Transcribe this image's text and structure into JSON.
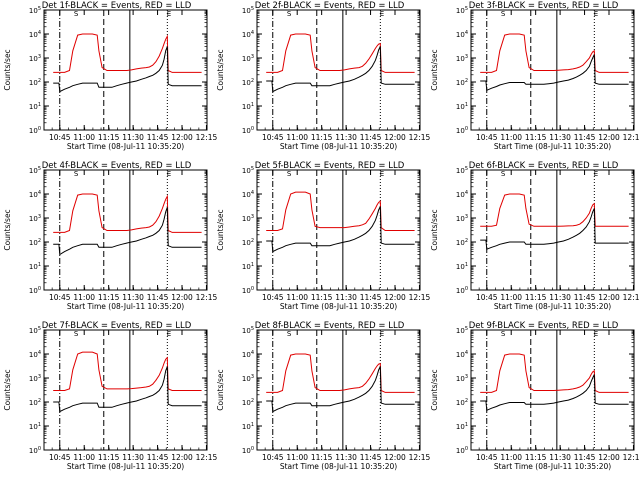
{
  "chart_data": {
    "type": "line",
    "layout": "3x3 grid of panels",
    "common": {
      "title_suffix": "-BLACK = Events, RED = LLD",
      "ylabel": "Counts/sec",
      "xlabel": "Start Time (08-Jul-11 10:35:20)",
      "x_ticks": [
        "10:45",
        "11:00",
        "11:15",
        "11:30",
        "11:45",
        "12:00",
        "12:15"
      ],
      "x_range_minutes_from_start": [
        0,
        100
      ],
      "y_scale": "log",
      "y_ticks": [
        "10^0",
        "10^1",
        "10^2",
        "10^3",
        "10^4",
        "10^5"
      ],
      "ylim": [
        1,
        100000
      ],
      "grid": false,
      "legend": "none",
      "series_names": [
        "Events",
        "LLD"
      ],
      "series_colors": [
        "#000000",
        "#e00000"
      ],
      "vertical_markers": [
        {
          "time": "10:45",
          "style": "dash-dot"
        },
        {
          "time": "11:12",
          "style": "dashed"
        },
        {
          "time": "11:28",
          "style": "solid"
        },
        {
          "time": "11:51",
          "style": "dotted"
        },
        {
          "time": "12:16",
          "style": "dotted"
        }
      ],
      "marker_labels": [
        {
          "time": "10:55",
          "label": "S"
        },
        {
          "time": "11:52",
          "label": "E"
        }
      ],
      "time_points": [
        "10:41",
        "10:44",
        "10:44.5",
        "10:45",
        "10:48",
        "10:51",
        "10:53",
        "10:56",
        "10:59",
        "11:02",
        "11:05",
        "11:08",
        "11:09",
        "11:11",
        "11:14",
        "11:17",
        "11:20",
        "11:23",
        "11:26",
        "11:29",
        "11:32",
        "11:35",
        "11:38",
        "11:40",
        "11:42",
        "11:44",
        "11:46",
        "11:48",
        "11:49",
        "11:50",
        "11:51",
        "11:51.5",
        "11:54",
        "11:57",
        "12:00",
        "12:03",
        "12:06",
        "12:09",
        "12:12"
      ]
    },
    "panels": [
      {
        "title": "Det 1f-BLACK = Events, RED = LLD",
        "events": [
          90,
          90,
          90,
          40,
          50,
          60,
          70,
          80,
          90,
          90,
          90,
          90,
          60,
          60,
          60,
          60,
          70,
          80,
          90,
          100,
          110,
          130,
          150,
          170,
          190,
          230,
          300,
          500,
          900,
          2000,
          3000,
          80,
          70,
          70,
          70,
          70,
          70,
          70,
          70
        ],
        "lld": [
          250,
          250,
          250,
          250,
          250,
          300,
          2000,
          9000,
          10000,
          10000,
          10000,
          9000,
          2000,
          400,
          300,
          300,
          300,
          300,
          300,
          320,
          350,
          380,
          400,
          420,
          500,
          700,
          1200,
          2500,
          4000,
          6000,
          8000,
          300,
          250,
          250,
          250,
          250,
          250,
          250,
          250
        ]
      },
      {
        "title": "Det 2f-BLACK = Events, RED = LLD",
        "events": [
          110,
          110,
          110,
          40,
          50,
          60,
          70,
          80,
          90,
          90,
          90,
          90,
          70,
          70,
          70,
          70,
          70,
          80,
          90,
          100,
          110,
          130,
          160,
          190,
          230,
          300,
          450,
          800,
          1300,
          2200,
          3000,
          90,
          80,
          80,
          80,
          80,
          80,
          80,
          80
        ],
        "lld": [
          250,
          250,
          250,
          250,
          250,
          300,
          2000,
          9000,
          10000,
          10000,
          10000,
          9000,
          2000,
          400,
          300,
          300,
          300,
          300,
          300,
          320,
          350,
          380,
          400,
          450,
          600,
          900,
          1500,
          2500,
          3200,
          3800,
          4000,
          300,
          250,
          250,
          250,
          250,
          250,
          250,
          250
        ]
      },
      {
        "title": "Det 3f-BLACK = Events, RED = LLD",
        "events": [
          110,
          110,
          110,
          45,
          55,
          65,
          75,
          85,
          95,
          95,
          95,
          95,
          80,
          80,
          80,
          80,
          80,
          85,
          90,
          100,
          110,
          120,
          140,
          160,
          190,
          230,
          300,
          450,
          700,
          1000,
          1400,
          90,
          80,
          80,
          80,
          80,
          80,
          80,
          80
        ],
        "lld": [
          250,
          250,
          250,
          250,
          250,
          300,
          2000,
          9000,
          10000,
          10000,
          10000,
          9000,
          2000,
          400,
          300,
          300,
          300,
          300,
          300,
          310,
          320,
          330,
          350,
          380,
          420,
          500,
          700,
          1000,
          1400,
          1800,
          2000,
          300,
          250,
          250,
          250,
          250,
          250,
          250,
          250
        ]
      },
      {
        "title": "Det 4f-BLACK = Events, RED = LLD",
        "events": [
          80,
          80,
          80,
          30,
          40,
          50,
          60,
          70,
          80,
          80,
          80,
          80,
          60,
          60,
          60,
          60,
          70,
          80,
          90,
          100,
          110,
          130,
          150,
          170,
          190,
          230,
          300,
          500,
          900,
          1800,
          2800,
          70,
          60,
          60,
          60,
          60,
          60,
          60,
          60
        ],
        "lld": [
          250,
          250,
          250,
          250,
          250,
          300,
          2000,
          9000,
          10000,
          10000,
          10000,
          9000,
          2000,
          400,
          300,
          300,
          300,
          300,
          300,
          320,
          350,
          380,
          400,
          420,
          500,
          700,
          1200,
          2500,
          4000,
          6000,
          8000,
          300,
          250,
          250,
          250,
          250,
          250,
          250,
          250
        ]
      },
      {
        "title": "Det 5f-BLACK = Events, RED = LLD",
        "events": [
          110,
          110,
          110,
          40,
          50,
          60,
          70,
          80,
          90,
          90,
          90,
          90,
          70,
          70,
          70,
          70,
          70,
          80,
          90,
          100,
          110,
          130,
          160,
          190,
          230,
          300,
          450,
          800,
          1300,
          2200,
          3000,
          90,
          80,
          80,
          80,
          80,
          80,
          80,
          80
        ],
        "lld": [
          300,
          300,
          300,
          300,
          300,
          350,
          2200,
          10000,
          12000,
          12000,
          12000,
          10000,
          2200,
          450,
          400,
          400,
          400,
          400,
          400,
          400,
          420,
          450,
          480,
          520,
          600,
          900,
          1500,
          2500,
          3500,
          4500,
          5000,
          400,
          300,
          300,
          300,
          300,
          300,
          300,
          300
        ]
      },
      {
        "title": "Det 6f-BLACK = Events, RED = LLD",
        "events": [
          120,
          120,
          120,
          50,
          60,
          70,
          80,
          90,
          100,
          100,
          100,
          100,
          80,
          80,
          80,
          80,
          80,
          85,
          90,
          100,
          110,
          130,
          160,
          190,
          230,
          300,
          420,
          700,
          1100,
          1800,
          2500,
          90,
          90,
          90,
          90,
          90,
          90,
          90,
          90
        ],
        "lld": [
          450,
          450,
          450,
          450,
          450,
          500,
          2500,
          9000,
          10000,
          10000,
          10000,
          9000,
          2500,
          550,
          450,
          450,
          450,
          450,
          450,
          450,
          460,
          470,
          480,
          500,
          550,
          700,
          1000,
          1600,
          2500,
          3500,
          4000,
          450,
          450,
          450,
          450,
          450,
          450,
          450,
          450
        ]
      },
      {
        "title": "Det 7f-BLACK = Events, RED = LLD",
        "events": [
          100,
          100,
          100,
          40,
          50,
          60,
          70,
          80,
          90,
          90,
          90,
          90,
          60,
          60,
          60,
          60,
          70,
          80,
          90,
          100,
          110,
          130,
          150,
          170,
          190,
          230,
          300,
          500,
          900,
          2000,
          3000,
          80,
          70,
          70,
          70,
          70,
          70,
          70,
          70
        ],
        "lld": [
          300,
          300,
          300,
          300,
          300,
          350,
          2200,
          10000,
          12000,
          12000,
          12000,
          10000,
          2200,
          450,
          350,
          350,
          350,
          350,
          350,
          360,
          380,
          400,
          420,
          450,
          550,
          800,
          1300,
          2600,
          4200,
          6000,
          7000,
          350,
          300,
          300,
          300,
          300,
          300,
          300,
          300
        ]
      },
      {
        "title": "Det 8f-BLACK = Events, RED = LLD",
        "events": [
          110,
          110,
          110,
          40,
          50,
          60,
          70,
          80,
          90,
          90,
          90,
          90,
          70,
          70,
          70,
          70,
          70,
          80,
          90,
          100,
          110,
          130,
          160,
          190,
          230,
          300,
          450,
          800,
          1300,
          2200,
          3000,
          90,
          80,
          80,
          80,
          80,
          80,
          80,
          80
        ],
        "lld": [
          250,
          250,
          250,
          250,
          250,
          300,
          2000,
          9000,
          10000,
          10000,
          10000,
          9000,
          2000,
          400,
          300,
          300,
          300,
          300,
          300,
          320,
          350,
          380,
          400,
          450,
          600,
          900,
          1500,
          2500,
          3200,
          3800,
          4000,
          300,
          250,
          250,
          250,
          250,
          250,
          250,
          250
        ]
      },
      {
        "title": "Det 9f-BLACK = Events, RED = LLD",
        "events": [
          110,
          110,
          110,
          45,
          55,
          65,
          75,
          85,
          95,
          95,
          95,
          95,
          80,
          80,
          80,
          80,
          80,
          85,
          90,
          100,
          110,
          120,
          140,
          160,
          190,
          230,
          300,
          450,
          700,
          1000,
          1400,
          90,
          80,
          80,
          80,
          80,
          80,
          80,
          80
        ],
        "lld": [
          250,
          250,
          250,
          250,
          250,
          300,
          2000,
          9000,
          10000,
          10000,
          10000,
          9000,
          2000,
          400,
          300,
          300,
          300,
          300,
          300,
          310,
          320,
          330,
          350,
          380,
          420,
          500,
          700,
          1000,
          1400,
          1800,
          2000,
          300,
          250,
          250,
          250,
          250,
          250,
          250,
          250
        ]
      }
    ]
  }
}
